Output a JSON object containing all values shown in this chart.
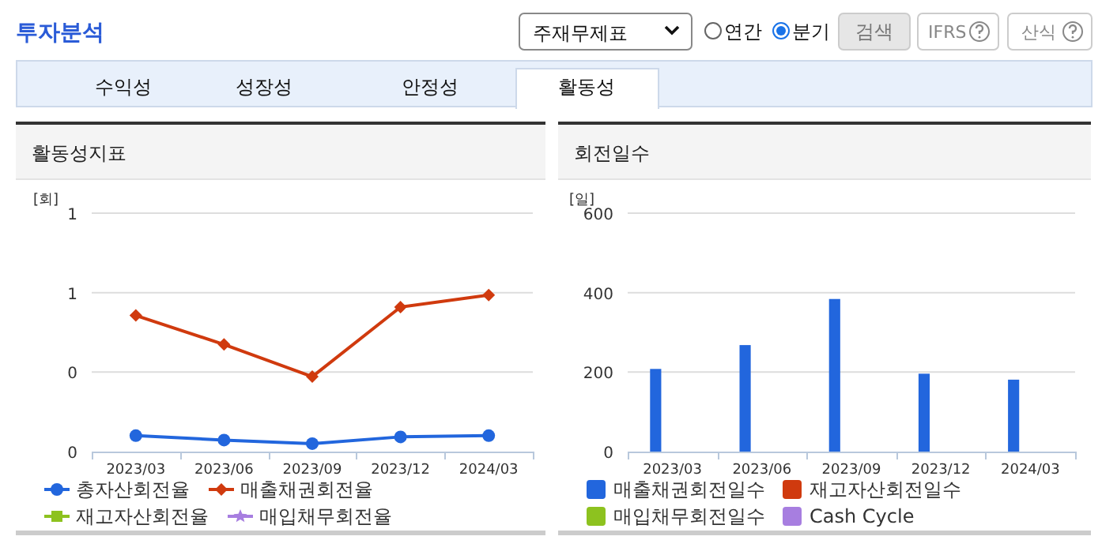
{
  "chart_data": [
    {
      "type": "line",
      "title": "활동성지표",
      "ylabel": "[회]",
      "categories": [
        "2023/03",
        "2023/06",
        "2023/09",
        "2023/12",
        "2024/03"
      ],
      "ylim": [
        0,
        1.2
      ],
      "yticks": [
        {
          "value": 0,
          "label": "0"
        },
        {
          "value": 0.4,
          "label": "0"
        },
        {
          "value": 0.8,
          "label": "1"
        },
        {
          "value": 1.2,
          "label": "1"
        }
      ],
      "grid": "y",
      "legend": "bottom",
      "line_style": "solid",
      "series": [
        {
          "name": "총자산회전율",
          "color": "#2266dd",
          "marker": "circle",
          "values": [
            0.08,
            0.058,
            0.04,
            0.074,
            0.08
          ]
        },
        {
          "name": "매출채권회전율",
          "color": "#d03a0e",
          "marker": "diamond",
          "values": [
            0.685,
            0.539,
            0.377,
            0.727,
            0.788
          ]
        },
        {
          "name": "재고자산회전율",
          "color": "#8dc21f",
          "marker": "square",
          "values": [
            null,
            null,
            null,
            null,
            null
          ]
        },
        {
          "name": "매입채무회전율",
          "color": "#a77ee0",
          "marker": "star",
          "values": [
            null,
            null,
            null,
            null,
            null
          ]
        }
      ],
      "annotations": [
        "투자분석",
        "주재무제표",
        "연간",
        "분기",
        "검색",
        "IFRS",
        "산식",
        "수익성",
        "성장성",
        "안정성",
        "활동성"
      ]
    },
    {
      "type": "bar",
      "title": "회전일수",
      "ylabel": "[일]",
      "categories": [
        "2023/03",
        "2023/06",
        "2023/09",
        "2023/12",
        "2024/03"
      ],
      "ylim": [
        0,
        600
      ],
      "yticks": [
        0,
        200,
        400,
        600
      ],
      "grid": "y",
      "legend": "bottom",
      "series": [
        {
          "name": "매출채권회전일수",
          "color": "#2266dd",
          "values": [
            208,
            268,
            384,
            196,
            181
          ]
        },
        {
          "name": "재고자산회전일수",
          "color": "#d03a0e",
          "values": [
            null,
            null,
            null,
            null,
            null
          ]
        },
        {
          "name": "매입채무회전일수",
          "color": "#8dc21f",
          "values": [
            null,
            null,
            null,
            null,
            null
          ]
        },
        {
          "name": "Cash Cycle",
          "color": "#a77ee0",
          "values": [
            null,
            null,
            null,
            null,
            null
          ]
        }
      ]
    }
  ]
}
